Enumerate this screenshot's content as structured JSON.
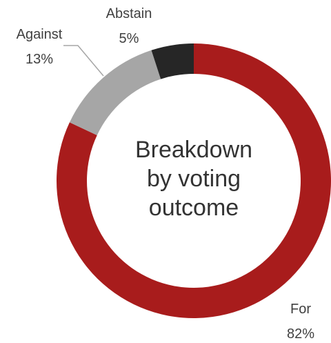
{
  "chart_data": {
    "type": "pie",
    "donut": true,
    "center_label_lines": [
      "Breakdown",
      "by voting",
      "outcome"
    ],
    "slices": [
      {
        "name": "For",
        "value": 82,
        "value_label": "82%",
        "color": "#a81c1c"
      },
      {
        "name": "Against",
        "value": 13,
        "value_label": "13%",
        "color": "#a6a6a6"
      },
      {
        "name": "Abstain",
        "value": 5,
        "value_label": "5%",
        "color": "#262626"
      }
    ],
    "legend": "none",
    "leader_line_color": "#a6a6a6"
  }
}
